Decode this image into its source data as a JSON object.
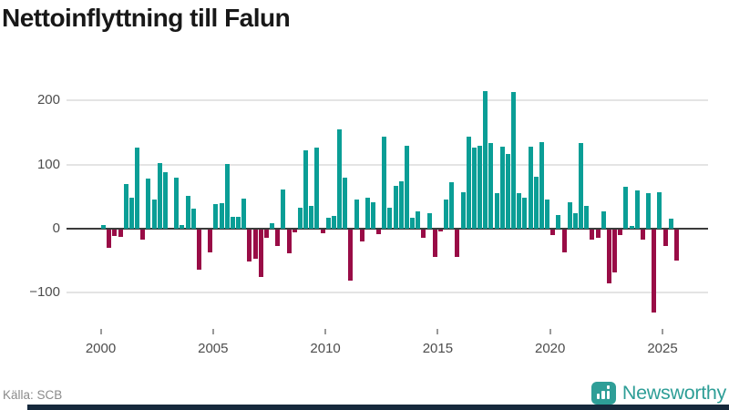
{
  "title": "Nettoinflyttning till Falun",
  "source": "Källa: SCB",
  "branding": {
    "logo_text": "Newsworthy",
    "logo_icon": "bar-chart-bubble-icon"
  },
  "colors": {
    "positive_bar": "#0a9e96",
    "negative_bar": "#990c46",
    "gridline": "#e4e4e4",
    "zero_line": "#3b3b3b",
    "axis_text": "#4d4d4d",
    "title_text": "#181818",
    "source_text": "#8a8a8a",
    "brand_teal": "#2e9e97",
    "footer_bar": "#16293c"
  },
  "chart_data": {
    "type": "bar",
    "title": "Nettoinflyttning till Falun",
    "x_unit": "quarter",
    "start_period": "2000 Q1",
    "end_period": "2025 Q3",
    "x_tick_labels": [
      "2000",
      "2005",
      "2010",
      "2015",
      "2020",
      "2025"
    ],
    "y_ticks": [
      200,
      100,
      0,
      -100
    ],
    "y_tick_labels": [
      "200",
      "100",
      "0",
      "−100"
    ],
    "ylim": [
      -150,
      245
    ],
    "grid": "horizontal",
    "legend": "none",
    "values": [
      5,
      -28,
      -10,
      -12,
      70,
      48,
      127,
      -15,
      78,
      45,
      102,
      88,
      0,
      80,
      6,
      51,
      31,
      -63,
      0,
      -35,
      39,
      40,
      101,
      18,
      18,
      47,
      -50,
      -45,
      -74,
      -13,
      8,
      -26,
      61,
      -37,
      -4,
      32,
      122,
      35,
      127,
      -5,
      17,
      20,
      155,
      79,
      -80,
      46,
      -19,
      49,
      41,
      -7,
      144,
      33,
      67,
      74,
      129,
      17,
      27,
      -13,
      24,
      -42,
      -3,
      46,
      73,
      -42,
      57,
      143,
      126,
      129,
      215,
      133,
      56,
      128,
      117,
      213,
      56,
      48,
      128,
      81,
      135,
      45,
      -9,
      22,
      -35,
      41,
      24,
      133,
      35,
      -16,
      -13,
      27,
      -84,
      -67,
      -8,
      66,
      4,
      59,
      -16,
      55,
      -129,
      57,
      -26,
      16,
      -49
    ]
  }
}
